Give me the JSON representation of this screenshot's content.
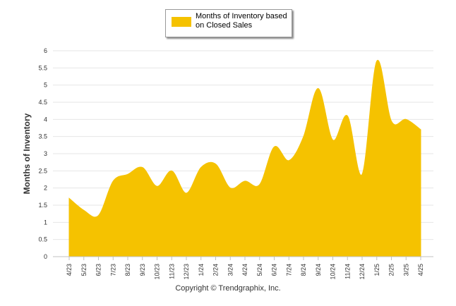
{
  "chart_data": {
    "type": "area",
    "title": "",
    "xlabel": "",
    "ylabel": "Months of Inventory",
    "ylim": [
      0,
      6
    ],
    "yticks": [
      "0",
      "0.5",
      "1",
      "1.5",
      "2",
      "2.5",
      "3",
      "3.5",
      "4",
      "4.5",
      "5",
      "5.5",
      "6"
    ],
    "categories": [
      "4/23",
      "5/23",
      "6/23",
      "7/23",
      "8/23",
      "9/23",
      "10/23",
      "11/23",
      "12/23",
      "1/24",
      "2/24",
      "3/24",
      "4/24",
      "5/24",
      "6/24",
      "7/24",
      "8/24",
      "9/24",
      "10/24",
      "11/24",
      "12/24",
      "1/25",
      "2/25",
      "3/25",
      "4/25"
    ],
    "series": [
      {
        "name": "Months of Inventory based on Closed Sales",
        "color": "#F5C200",
        "values": [
          1.7,
          1.35,
          1.2,
          2.2,
          2.4,
          2.6,
          2.05,
          2.5,
          1.85,
          2.6,
          2.7,
          2.0,
          2.2,
          2.1,
          3.2,
          2.8,
          3.5,
          4.9,
          3.4,
          4.1,
          2.4,
          5.7,
          3.95,
          4.0,
          3.7
        ]
      }
    ],
    "grid": true,
    "legend": "top-center"
  },
  "legend": {
    "label": "Months of Inventory based on Closed Sales",
    "color": "#F5C200"
  },
  "footer": {
    "copyright": "Copyright © Trendgraphix, Inc."
  }
}
